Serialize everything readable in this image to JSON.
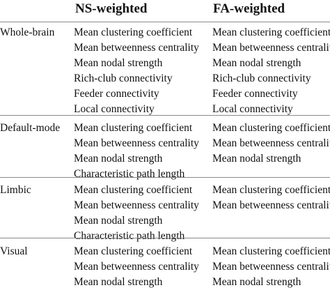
{
  "headers": {
    "ns": "NS-weighted",
    "fa": "FA-weighted"
  },
  "groups": [
    {
      "region": "Whole-brain",
      "ns": [
        "Mean clustering coefficient",
        "Mean betweenness centrality",
        "Mean nodal strength",
        "Rich-club connectivity",
        "Feeder connectivity",
        "Local connectivity"
      ],
      "fa": [
        "Mean clustering coefficient",
        "Mean betweenness centrality",
        "Mean nodal strength",
        "Rich-club connectivity",
        "Feeder connectivity",
        "Local connectivity"
      ]
    },
    {
      "region": "Default-mode",
      "ns": [
        "Mean clustering coefficient",
        "Mean betweenness centrality",
        "Mean nodal strength",
        "Characteristic path length"
      ],
      "fa": [
        "Mean clustering coefficient",
        "Mean betweenness centrality",
        "Mean nodal strength"
      ]
    },
    {
      "region": "Limbic",
      "ns": [
        "Mean clustering coefficient",
        "Mean betweenness centrality",
        "Mean nodal strength",
        "Characteristic path length"
      ],
      "fa": [
        "Mean clustering coefficient",
        "Mean betweenness centrality"
      ]
    },
    {
      "region": "Visual",
      "ns": [
        "Mean clustering coefficient",
        "Mean betweenness centrality",
        "Mean nodal strength"
      ],
      "fa": [
        "Mean clustering coefficient",
        "Mean betweenness centrality",
        "Mean nodal strength"
      ]
    }
  ]
}
